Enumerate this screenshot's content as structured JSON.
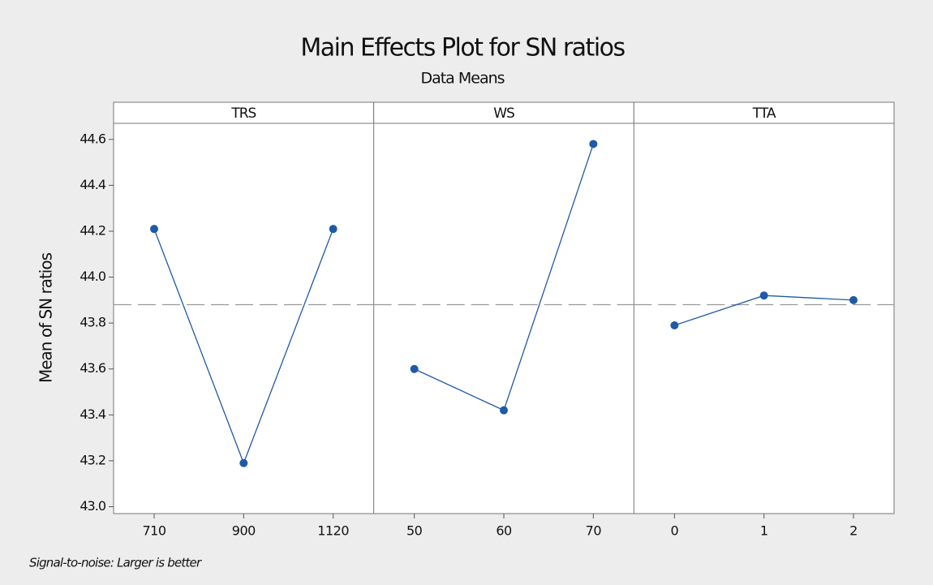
{
  "chart_data": {
    "type": "line",
    "title": "Main Effects Plot for SN ratios",
    "subtitle": "Data Means",
    "ylabel": "Mean of SN ratios",
    "footnote": "Signal-to-noise: Larger is better",
    "color": "#1f5aa6",
    "reference_line": 43.88,
    "ylim": [
      42.97,
      44.67
    ],
    "yticks": [
      {
        "value": 43,
        "label": "43.0"
      },
      43.2,
      43.4,
      43.6,
      43.8,
      {
        "value": 44,
        "label": "44.0"
      },
      44.2,
      44.4,
      44.6
    ],
    "panels": [
      {
        "name": "TRS",
        "categories": [
          "710",
          "900",
          "1120"
        ],
        "values": [
          44.21,
          43.19,
          44.21
        ]
      },
      {
        "name": "WS",
        "categories": [
          "50",
          "60",
          "70"
        ],
        "values": [
          43.6,
          43.42,
          44.58
        ]
      },
      {
        "name": "TTA",
        "categories": [
          "0",
          "1",
          "2"
        ],
        "values": [
          43.79,
          43.92,
          43.9
        ]
      }
    ]
  }
}
